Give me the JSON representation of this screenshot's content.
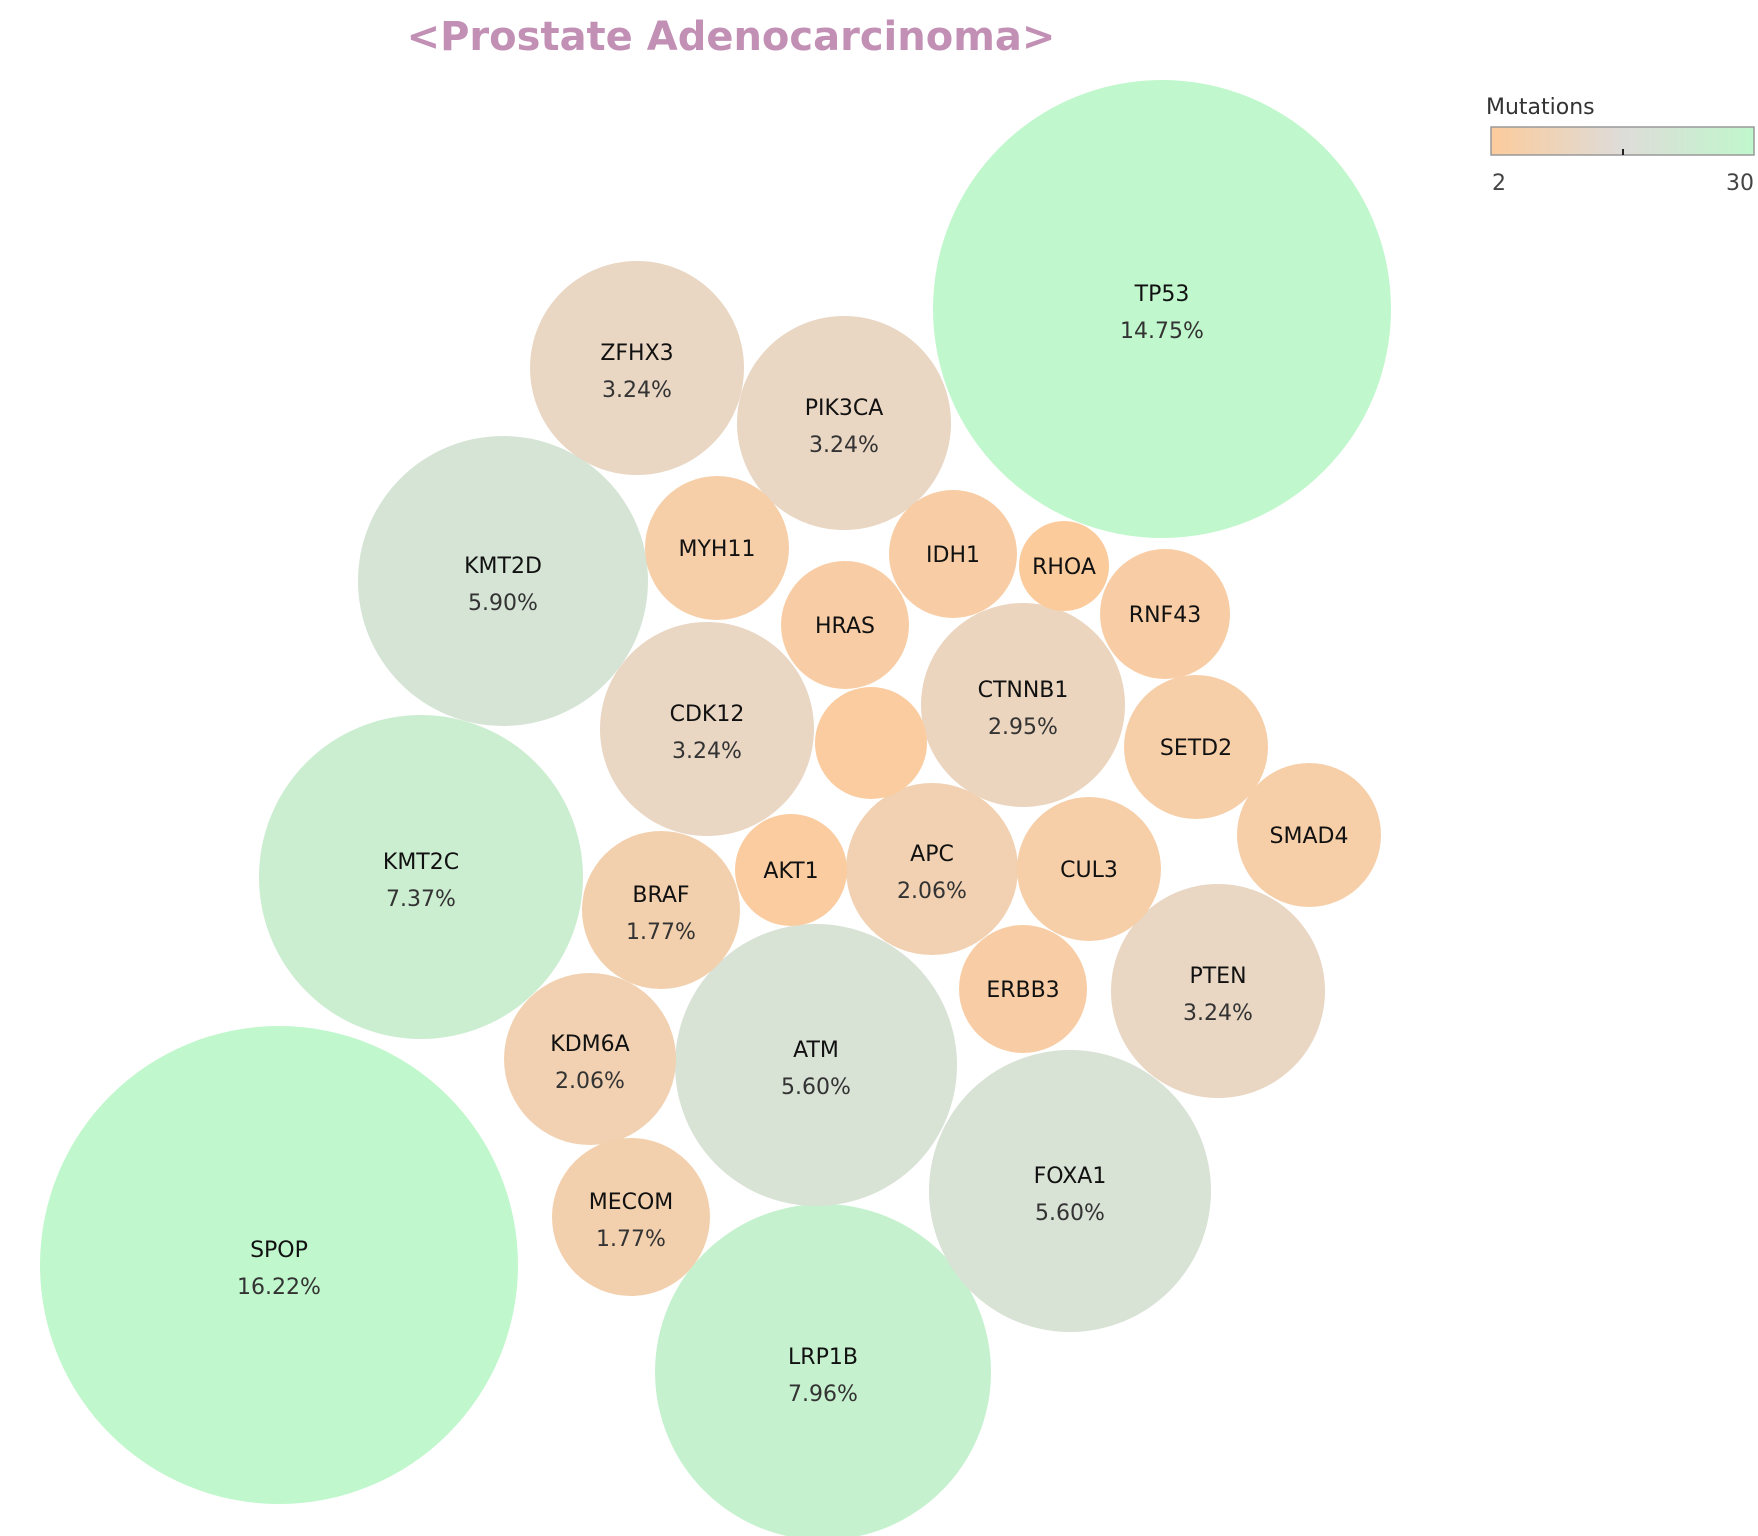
{
  "chart_data": {
    "type": "bubble",
    "title": "<Prostate Adenocarcinoma>",
    "colorscale": {
      "title": "Mutations",
      "min": 2,
      "max": 30,
      "tick_labels": [
        "2",
        "30"
      ],
      "colors": [
        "#fccb9c",
        "#dedcd8",
        "#c0f7cc"
      ]
    },
    "bubbles": [
      {
        "gene": "SPOP",
        "percent": "16.22%",
        "mutations": 55
      },
      {
        "gene": "TP53",
        "percent": "14.75%",
        "mutations": 50
      },
      {
        "gene": "LRP1B",
        "percent": "7.96%",
        "mutations": 27
      },
      {
        "gene": "KMT2C",
        "percent": "7.37%",
        "mutations": 25
      },
      {
        "gene": "KMT2D",
        "percent": "5.90%",
        "mutations": 20
      },
      {
        "gene": "ATM",
        "percent": "5.60%",
        "mutations": 19
      },
      {
        "gene": "FOXA1",
        "percent": "5.60%",
        "mutations": 19
      },
      {
        "gene": "ZFHX3",
        "percent": "3.24%",
        "mutations": 11
      },
      {
        "gene": "PIK3CA",
        "percent": "3.24%",
        "mutations": 11
      },
      {
        "gene": "CDK12",
        "percent": "3.24%",
        "mutations": 11
      },
      {
        "gene": "PTEN",
        "percent": "3.24%",
        "mutations": 11
      },
      {
        "gene": "CTNNB1",
        "percent": "2.95%",
        "mutations": 10
      },
      {
        "gene": "APC",
        "percent": "2.06%",
        "mutations": 7
      },
      {
        "gene": "KDM6A",
        "percent": "2.06%",
        "mutations": 7
      },
      {
        "gene": "BRAF",
        "percent": "1.77%",
        "mutations": 6
      },
      {
        "gene": "MECOM",
        "percent": "1.77%",
        "mutations": 6
      },
      {
        "gene": "MYH11",
        "percent": "",
        "mutations": 5
      },
      {
        "gene": "IDH1",
        "percent": "",
        "mutations": 4
      },
      {
        "gene": "RNF43",
        "percent": "",
        "mutations": 4
      },
      {
        "gene": "SETD2",
        "percent": "",
        "mutations": 5
      },
      {
        "gene": "SMAD4",
        "percent": "",
        "mutations": 5
      },
      {
        "gene": "CUL3",
        "percent": "",
        "mutations": 5
      },
      {
        "gene": "HRAS",
        "percent": "",
        "mutations": 4
      },
      {
        "gene": "ERBB3",
        "percent": "",
        "mutations": 4
      },
      {
        "gene": "AKT1",
        "percent": "",
        "mutations": 3
      },
      {
        "gene": "RHOA",
        "percent": "",
        "mutations": 2
      },
      {
        "gene": "",
        "percent": "",
        "mutations": 3
      }
    ]
  }
}
